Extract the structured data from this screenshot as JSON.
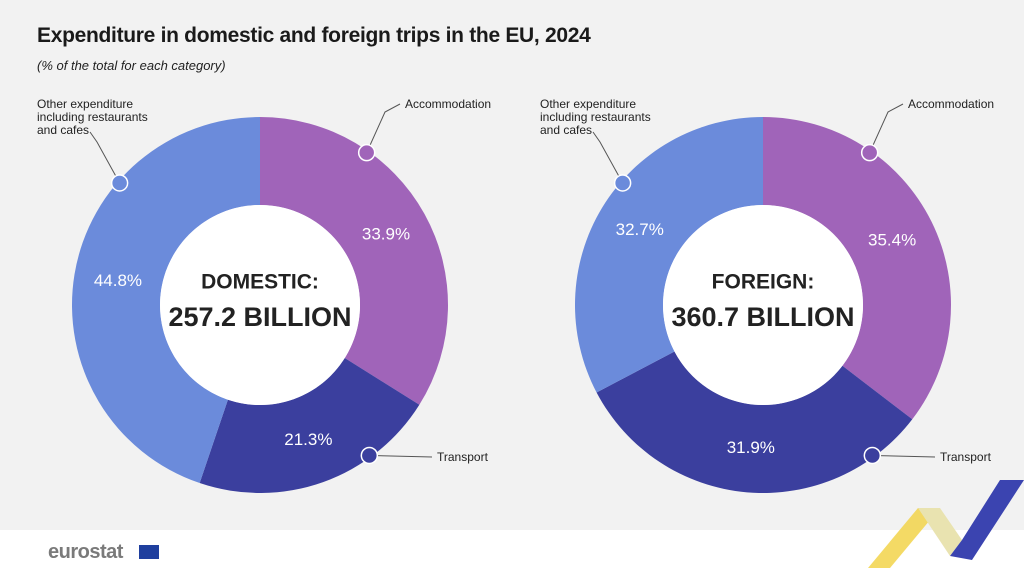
{
  "title": "Expenditure in domestic and foreign trips in the EU, 2024",
  "subtitle": "(% of the total for each category)",
  "footer": {
    "logo": "eurostat"
  },
  "chart_data": [
    {
      "type": "donut",
      "center_title": "DOMESTIC:",
      "center_value": "257.2 BILLION",
      "categories": [
        "Accommodation",
        "Transport",
        "Other expenditure including restaurants and cafes"
      ],
      "values": [
        33.9,
        21.3,
        44.8
      ],
      "value_labels": [
        "33.9%",
        "21.3%",
        "44.8%"
      ],
      "colors": [
        "#a064b9",
        "#3b3f9e",
        "#6b8bdb"
      ]
    },
    {
      "type": "donut",
      "center_title": "FOREIGN:",
      "center_value": "360.7 BILLION",
      "categories": [
        "Accommodation",
        "Transport",
        "Other expenditure including restaurants and cafes"
      ],
      "values": [
        35.4,
        31.9,
        32.7
      ],
      "value_labels": [
        "35.4%",
        "31.9%",
        "32.7%"
      ],
      "colors": [
        "#a064b9",
        "#3b3f9e",
        "#6b8bdb"
      ]
    }
  ]
}
